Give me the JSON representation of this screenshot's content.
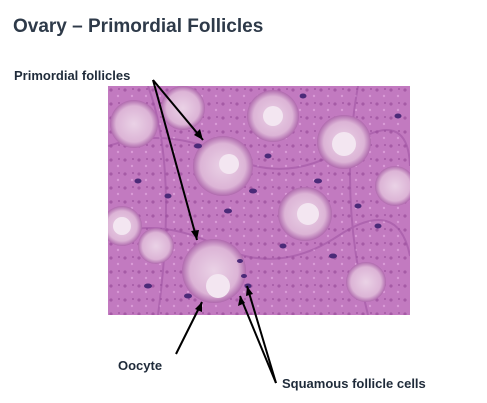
{
  "slide": {
    "title": "Ovary – Primordial Follicles"
  },
  "labels": {
    "primordial_follicles": "Primordial follicles",
    "oocyte": "Oocyte",
    "squamous_follicle_cells": "Squamous follicle cells"
  },
  "colors": {
    "title_text": "#2e3a49",
    "label_text": "#1f2b3a",
    "tissue_background": "#c77fc4",
    "follicle_fill": "#e2bfdc",
    "nucleus_color": "#4b2a78"
  }
}
